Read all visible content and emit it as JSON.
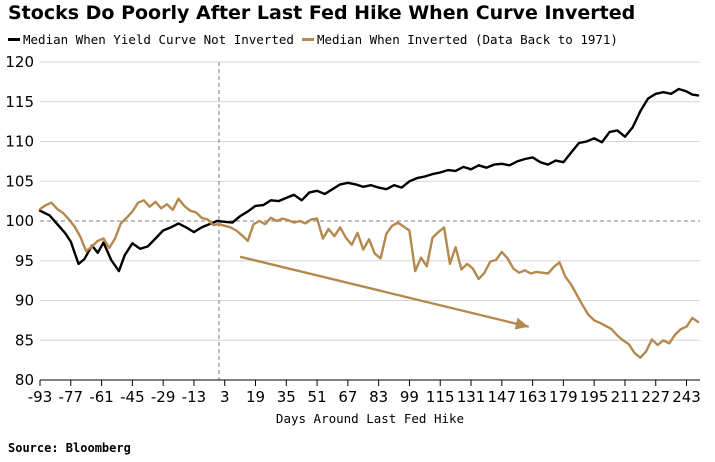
{
  "colors": {
    "not_inverted": "#000000",
    "inverted": "#b5894e",
    "grid": "#d6d6d6",
    "ref_line": "#999999",
    "axis": "#000000"
  },
  "source": "Source: Bloomberg",
  "chart_data": {
    "type": "line",
    "title": "Stocks Do Poorly After Last Fed Hike When Curve Inverted",
    "xlabel": "Days Around Last Fed Hike",
    "ylabel": "",
    "xlim": [
      -93,
      250
    ],
    "ylim": [
      80,
      120
    ],
    "x_ticks": [
      -93,
      -77,
      -61,
      -45,
      -29,
      -13,
      3,
      19,
      35,
      51,
      67,
      83,
      99,
      115,
      131,
      147,
      163,
      179,
      195,
      211,
      227,
      243
    ],
    "x_tick_labels": [
      "-93",
      "-77",
      "-61",
      "-45",
      "-29",
      "-13",
      "3",
      "19",
      "35",
      "51",
      "67",
      "83",
      "99",
      "115",
      "131",
      "147",
      "163",
      "179",
      "195",
      "211",
      "227",
      "243"
    ],
    "y_ticks": [
      80,
      85,
      90,
      95,
      100,
      105,
      110,
      115,
      120
    ],
    "y_tick_labels": [
      "80",
      "85",
      "90",
      "95",
      "100",
      "105",
      "110",
      "115",
      "120"
    ],
    "grid": "horizontal",
    "reference_lines": {
      "horizontal_y": 100,
      "vertical_x": 0
    },
    "legend": "top-left",
    "series": [
      {
        "name": "Median When Yield Curve Not Inverted",
        "color": "#000000",
        "x": [
          -93,
          -88,
          -84,
          -80,
          -77,
          -73,
          -70,
          -66,
          -63,
          -60,
          -56,
          -52,
          -49,
          -45,
          -41,
          -37,
          -33,
          -29,
          -25,
          -21,
          -17,
          -13,
          -9,
          -5,
          -1,
          3,
          7,
          11,
          15,
          19,
          23,
          27,
          31,
          35,
          39,
          43,
          47,
          51,
          55,
          59,
          63,
          67,
          71,
          75,
          79,
          83,
          87,
          91,
          95,
          99,
          103,
          107,
          111,
          115,
          119,
          123,
          127,
          131,
          135,
          139,
          143,
          147,
          151,
          155,
          159,
          163,
          167,
          171,
          175,
          179,
          183,
          187,
          191,
          195,
          199,
          203,
          207,
          211,
          215,
          219,
          223,
          227,
          231,
          235,
          239,
          243,
          246,
          249
        ],
        "values": [
          101.3,
          100.7,
          99.6,
          98.5,
          97.4,
          94.6,
          95.2,
          96.9,
          96.0,
          97.3,
          95.1,
          93.7,
          95.7,
          97.2,
          96.5,
          96.8,
          97.8,
          98.8,
          99.2,
          99.7,
          99.2,
          98.6,
          99.2,
          99.6,
          100.0,
          99.9,
          99.8,
          100.6,
          101.2,
          101.9,
          102.0,
          102.6,
          102.5,
          102.9,
          103.3,
          102.6,
          103.6,
          103.8,
          103.4,
          104.0,
          104.6,
          104.8,
          104.6,
          104.3,
          104.5,
          104.2,
          104.0,
          104.5,
          104.2,
          105.0,
          105.4,
          105.6,
          105.9,
          106.1,
          106.4,
          106.3,
          106.8,
          106.5,
          107.0,
          106.7,
          107.1,
          107.2,
          107.0,
          107.5,
          107.8,
          108.0,
          107.4,
          107.1,
          107.6,
          107.4,
          108.6,
          109.8,
          110.0,
          110.4,
          109.9,
          111.2,
          111.4,
          110.6,
          111.8,
          113.8,
          115.4,
          116.0,
          116.2,
          116.0,
          116.6,
          116.3,
          115.9,
          115.8
        ]
      },
      {
        "name": "Median When Inverted (Data Back to 1971)",
        "color": "#b5894e",
        "x": [
          -93,
          -90,
          -87,
          -84,
          -81,
          -78,
          -75,
          -72,
          -69,
          -66,
          -63,
          -60,
          -57,
          -54,
          -51,
          -48,
          -45,
          -42,
          -39,
          -36,
          -33,
          -30,
          -27,
          -24,
          -21,
          -18,
          -15,
          -12,
          -9,
          -6,
          -3,
          0,
          3,
          6,
          9,
          12,
          15,
          18,
          21,
          24,
          27,
          30,
          33,
          36,
          39,
          42,
          45,
          48,
          51,
          54,
          57,
          60,
          63,
          66,
          69,
          72,
          75,
          78,
          81,
          84,
          87,
          90,
          93,
          96,
          99,
          102,
          105,
          108,
          111,
          114,
          117,
          120,
          123,
          126,
          129,
          132,
          135,
          138,
          141,
          144,
          147,
          150,
          153,
          156,
          159,
          162,
          165,
          168,
          171,
          174,
          177,
          180,
          183,
          186,
          189,
          192,
          195,
          198,
          201,
          204,
          207,
          210,
          213,
          216,
          219,
          222,
          225,
          228,
          231,
          234,
          237,
          240,
          243,
          246,
          249
        ],
        "values": [
          101.5,
          102.0,
          102.3,
          101.5,
          101.0,
          100.2,
          99.3,
          98.0,
          96.2,
          96.8,
          97.5,
          97.8,
          96.6,
          97.8,
          99.7,
          100.4,
          101.2,
          102.3,
          102.6,
          101.8,
          102.4,
          101.6,
          102.1,
          101.4,
          102.8,
          101.9,
          101.3,
          101.1,
          100.4,
          100.2,
          99.5,
          99.6,
          99.4,
          99.2,
          98.8,
          98.2,
          97.5,
          99.6,
          100.0,
          99.6,
          100.4,
          100.0,
          100.3,
          100.1,
          99.8,
          100.0,
          99.7,
          100.2,
          100.3,
          97.8,
          99.0,
          98.1,
          99.2,
          97.9,
          97.0,
          98.5,
          96.4,
          97.7,
          95.9,
          95.3,
          98.4,
          99.4,
          99.8,
          99.3,
          98.8,
          93.7,
          95.4,
          94.3,
          97.9,
          98.6,
          99.2,
          94.6,
          96.7,
          93.9,
          94.6,
          94.0,
          92.7,
          93.5,
          94.9,
          95.1,
          96.1,
          95.3,
          94.0,
          93.5,
          93.8,
          93.4,
          93.6,
          93.5,
          93.4,
          94.2,
          94.8,
          93.0,
          92.0,
          90.7,
          89.4,
          88.2,
          87.5,
          87.2,
          86.8,
          86.4,
          85.6,
          85.0,
          84.5,
          83.4,
          82.8,
          83.6,
          85.1,
          84.4,
          85.0,
          84.6,
          85.7,
          86.4,
          86.7,
          87.8,
          87.3
        ]
      }
    ],
    "annotations": [
      {
        "type": "arrow",
        "color": "#b5894e",
        "from": {
          "x": 11,
          "y": 95.5
        },
        "to": {
          "x": 161,
          "y": 86.7
        }
      }
    ]
  }
}
